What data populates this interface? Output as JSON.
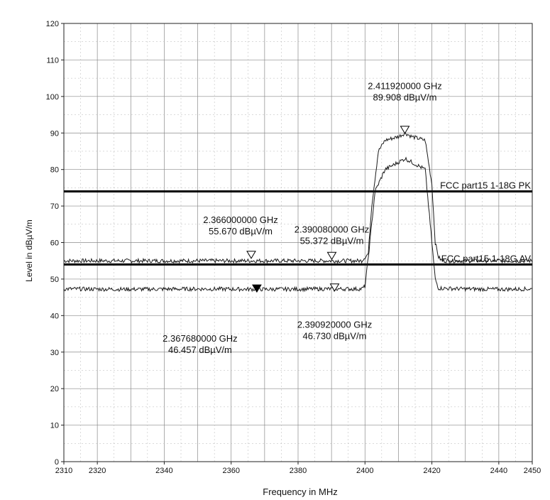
{
  "chart_data": {
    "type": "line",
    "xlabel": "Frequency in MHz",
    "ylabel": "Level in dBµV/m",
    "xlim": [
      2310,
      2450
    ],
    "ylim": [
      0,
      120
    ],
    "x_ticks": [
      2310,
      2320,
      2340,
      2360,
      2380,
      2400,
      2420,
      2440,
      2450
    ],
    "y_ticks": [
      0,
      10,
      20,
      30,
      40,
      50,
      60,
      70,
      80,
      90,
      100,
      110,
      120
    ],
    "grid": true,
    "limit_lines": [
      {
        "label": "FCC part15 1-18G PK",
        "y": 74
      },
      {
        "label": "FCC part15 1-18G AV",
        "y": 54
      }
    ],
    "series": [
      {
        "x": [
          2310,
          2330,
          2350,
          2370,
          2390,
          2399,
          2401,
          2402,
          2404,
          2406,
          2410,
          2412,
          2414,
          2418,
          2420,
          2421,
          2422,
          2423,
          2430,
          2440,
          2450
        ],
        "y": [
          55,
          55,
          55,
          55,
          55,
          55,
          57,
          70,
          85,
          88,
          89,
          90,
          89,
          88,
          76,
          60,
          56,
          55,
          55,
          55,
          55
        ]
      },
      {
        "x": [
          2310,
          2330,
          2350,
          2370,
          2390,
          2399,
          2400,
          2401,
          2403,
          2406,
          2410,
          2412,
          2414,
          2418,
          2419,
          2420,
          2421,
          2422,
          2430,
          2440,
          2450
        ],
        "y": [
          47.3,
          47.2,
          47.3,
          47.2,
          47.3,
          47.3,
          48,
          56,
          74,
          80,
          82,
          83,
          82,
          80,
          70,
          60,
          50,
          47.5,
          47.3,
          47.2,
          47.3
        ]
      }
    ],
    "markers": [
      {
        "x": 2411.92,
        "y": 89.908,
        "freq": "2.411920000 GHz",
        "level": "89.908 dBµV/m",
        "filled": false
      },
      {
        "x": 2366.0,
        "y": 55.67,
        "freq": "2.366000000 GHz",
        "level": "55.670 dBµV/m",
        "filled": false
      },
      {
        "x": 2390.08,
        "y": 55.372,
        "freq": "2.390080000 GHz",
        "level": "55.372 dBµV/m",
        "filled": false
      },
      {
        "x": 2367.68,
        "y": 46.457,
        "freq": "2.367680000 GHz",
        "level": "46.457 dBµV/m",
        "filled": true
      },
      {
        "x": 2390.92,
        "y": 46.73,
        "freq": "2.390920000 GHz",
        "level": "46.730 dBµV/m",
        "filled": false
      }
    ]
  }
}
